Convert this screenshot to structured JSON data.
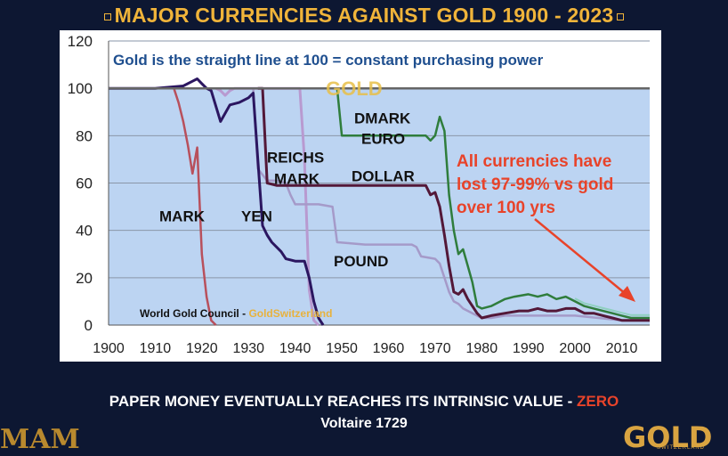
{
  "title": "MAJOR CURRENCIES AGAINST GOLD 1900 - 2023",
  "subtitle": "Gold is the straight line at 100 = constant purchasing power",
  "footer_quote": "PAPER MONEY EVENTUALLY REACHES ITS INTRINSIC VALUE - ",
  "footer_quote_highlight": "ZERO",
  "footer_author": "Voltaire 1729",
  "logo_left": "MAM",
  "logo_right": "GOLD",
  "logo_right_sub": "SWITZERLAND",
  "colors": {
    "gold_text": "#f0b43a",
    "plot_bg": "#bcd4f2",
    "annotation_red": "#e8432a",
    "gold_line": "#666666",
    "mark": "#b8505c",
    "yen": "#2b1660",
    "reichsmark": "#b89ad0",
    "dmark_euro": "#2f7d3c",
    "dollar": "#531838",
    "pound": "#a59ac9",
    "recent_light": "#8fd0c0"
  },
  "chart_data": {
    "type": "line",
    "title": "MAJOR CURRENCIES AGAINST GOLD 1900 - 2023",
    "subtitle": "Gold is the straight line at 100 = constant purchasing power",
    "xlim": [
      1900,
      2016
    ],
    "ylim": [
      0,
      120
    ],
    "x_ticks": [
      1900,
      1910,
      1920,
      1930,
      1940,
      1950,
      1960,
      1970,
      1980,
      1990,
      2000,
      2010
    ],
    "y_ticks": [
      0,
      20,
      40,
      60,
      80,
      100,
      120
    ],
    "grid": true,
    "annotations": {
      "main": "All currencies have lost 97-99% vs gold over 100 yrs",
      "source_prefix": "World Gold Council - ",
      "source_highlight": "GoldSwitzerland"
    },
    "series": [
      {
        "name": "GOLD",
        "label_position": {
          "x": 1917,
          "y": 100
        },
        "points": [
          [
            1900,
            100
          ],
          [
            2016,
            100
          ]
        ]
      },
      {
        "name": "MARK",
        "label_position": {
          "x": 1911,
          "y": 46
        },
        "points": [
          [
            1900,
            100
          ],
          [
            1912,
            100
          ],
          [
            1914,
            100
          ],
          [
            1915,
            94
          ],
          [
            1916,
            86
          ],
          [
            1917,
            76
          ],
          [
            1918,
            64
          ],
          [
            1919,
            75
          ],
          [
            1920,
            30
          ],
          [
            1921,
            12
          ],
          [
            1922,
            2
          ],
          [
            1923,
            0
          ]
        ]
      },
      {
        "name": "YEN",
        "label_position": {
          "x": 1930,
          "y": 46
        },
        "points": [
          [
            1900,
            100
          ],
          [
            1910,
            100
          ],
          [
            1916,
            101
          ],
          [
            1918,
            103
          ],
          [
            1919,
            104
          ],
          [
            1920,
            102
          ],
          [
            1921,
            100
          ],
          [
            1922,
            99
          ],
          [
            1924,
            86
          ],
          [
            1926,
            93
          ],
          [
            1928,
            94
          ],
          [
            1930,
            96
          ],
          [
            1931,
            98
          ],
          [
            1932,
            70
          ],
          [
            1933,
            42
          ],
          [
            1934,
            38
          ],
          [
            1935,
            35
          ],
          [
            1936,
            33
          ],
          [
            1937,
            31
          ],
          [
            1938,
            28
          ],
          [
            1940,
            27
          ],
          [
            1942,
            27
          ],
          [
            1943,
            20
          ],
          [
            1944,
            10
          ],
          [
            1945,
            3
          ],
          [
            1946,
            0
          ]
        ]
      },
      {
        "name": "REICHS MARK",
        "label_position": {
          "x": 1938,
          "y": 71
        },
        "points": [
          [
            1923,
            100
          ],
          [
            1924,
            99
          ],
          [
            1925,
            97
          ],
          [
            1926,
            99
          ],
          [
            1927,
            100
          ],
          [
            1932,
            100
          ],
          [
            1933,
            100
          ],
          [
            1934,
            100
          ],
          [
            1936,
            100
          ],
          [
            1939,
            100
          ],
          [
            1940,
            100
          ],
          [
            1941,
            100
          ],
          [
            1942,
            70
          ],
          [
            1943,
            15
          ],
          [
            1944,
            2
          ],
          [
            1945,
            0
          ]
        ]
      },
      {
        "name": "DMARK EURO",
        "label_position": {
          "x": 1955,
          "y": 86
        },
        "points": [
          [
            1948,
            100
          ],
          [
            1949,
            100
          ],
          [
            1950,
            80
          ],
          [
            1955,
            80
          ],
          [
            1960,
            80
          ],
          [
            1962,
            80
          ],
          [
            1965,
            80
          ],
          [
            1968,
            80
          ],
          [
            1969,
            78
          ],
          [
            1970,
            80
          ],
          [
            1971,
            88
          ],
          [
            1972,
            82
          ],
          [
            1973,
            55
          ],
          [
            1974,
            40
          ],
          [
            1975,
            30
          ],
          [
            1976,
            32
          ],
          [
            1977,
            25
          ],
          [
            1978,
            18
          ],
          [
            1979,
            8
          ],
          [
            1980,
            7
          ],
          [
            1982,
            8
          ],
          [
            1985,
            11
          ],
          [
            1987,
            12
          ],
          [
            1990,
            13
          ],
          [
            1992,
            12
          ],
          [
            1994,
            13
          ],
          [
            1996,
            11
          ],
          [
            1998,
            12
          ],
          [
            2000,
            10
          ],
          [
            2002,
            8
          ],
          [
            2004,
            7
          ],
          [
            2006,
            6
          ],
          [
            2008,
            5
          ],
          [
            2010,
            4
          ],
          [
            2012,
            3
          ],
          [
            2016,
            3
          ]
        ]
      },
      {
        "name": "DOLLAR",
        "label_position": {
          "x": 1967,
          "y": 63
        },
        "points": [
          [
            1932,
            100
          ],
          [
            1933,
            100
          ],
          [
            1934,
            60
          ],
          [
            1936,
            59
          ],
          [
            1940,
            59
          ],
          [
            1945,
            59
          ],
          [
            1950,
            59
          ],
          [
            1955,
            59
          ],
          [
            1960,
            59
          ],
          [
            1965,
            59
          ],
          [
            1967,
            59
          ],
          [
            1968,
            59
          ],
          [
            1969,
            55
          ],
          [
            1970,
            56
          ],
          [
            1971,
            50
          ],
          [
            1972,
            38
          ],
          [
            1973,
            25
          ],
          [
            1974,
            14
          ],
          [
            1975,
            13
          ],
          [
            1976,
            15
          ],
          [
            1977,
            11
          ],
          [
            1978,
            8
          ],
          [
            1979,
            5
          ],
          [
            1980,
            3
          ],
          [
            1982,
            4
          ],
          [
            1985,
            5
          ],
          [
            1988,
            6
          ],
          [
            1990,
            6
          ],
          [
            1992,
            7
          ],
          [
            1994,
            6
          ],
          [
            1996,
            6
          ],
          [
            1998,
            7
          ],
          [
            2000,
            7
          ],
          [
            2002,
            5
          ],
          [
            2004,
            5
          ],
          [
            2006,
            4
          ],
          [
            2008,
            3
          ],
          [
            2010,
            2
          ],
          [
            2012,
            2
          ],
          [
            2016,
            2
          ]
        ]
      },
      {
        "name": "POUND",
        "label_position": {
          "x": 1964,
          "y": 27
        },
        "points": [
          [
            1930,
            100
          ],
          [
            1931,
            100
          ],
          [
            1932,
            66
          ],
          [
            1934,
            61
          ],
          [
            1936,
            61
          ],
          [
            1938,
            60
          ],
          [
            1939,
            55
          ],
          [
            1940,
            51
          ],
          [
            1945,
            51
          ],
          [
            1948,
            50
          ],
          [
            1949,
            35
          ],
          [
            1955,
            34
          ],
          [
            1960,
            34
          ],
          [
            1965,
            34
          ],
          [
            1966,
            33
          ],
          [
            1967,
            29
          ],
          [
            1970,
            28
          ],
          [
            1971,
            26
          ],
          [
            1972,
            20
          ],
          [
            1973,
            14
          ],
          [
            1974,
            10
          ],
          [
            1975,
            9
          ],
          [
            1976,
            7
          ],
          [
            1978,
            5
          ],
          [
            1980,
            3
          ],
          [
            1982,
            3
          ],
          [
            1985,
            4
          ],
          [
            1990,
            4
          ],
          [
            1995,
            4
          ],
          [
            2000,
            4
          ],
          [
            2005,
            3
          ],
          [
            2010,
            2
          ],
          [
            2016,
            2
          ]
        ]
      }
    ]
  }
}
